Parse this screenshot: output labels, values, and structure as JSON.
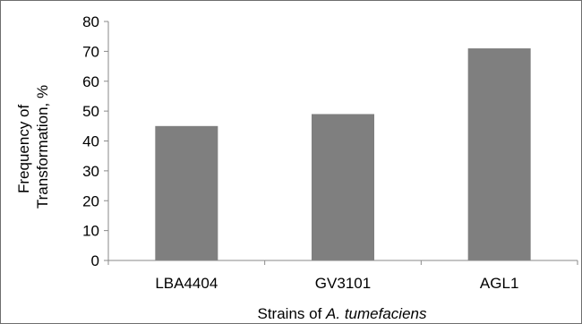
{
  "chart_data": {
    "type": "bar",
    "categories": [
      "LBA4404",
      "GV3101",
      "AGL1"
    ],
    "values": [
      45,
      49,
      71
    ],
    "ylim": [
      0,
      80
    ],
    "yticks": [
      "0",
      "10",
      "20",
      "30",
      "40",
      "50",
      "60",
      "70",
      "80"
    ],
    "ylabel_lines": [
      "Frequency of",
      "Transformation, %"
    ],
    "xlabel_prefix": "Strains of ",
    "xlabel_italic": "A. tumefaciens",
    "bar_color": "#7f7f7f",
    "grid": false,
    "legend": "none"
  }
}
